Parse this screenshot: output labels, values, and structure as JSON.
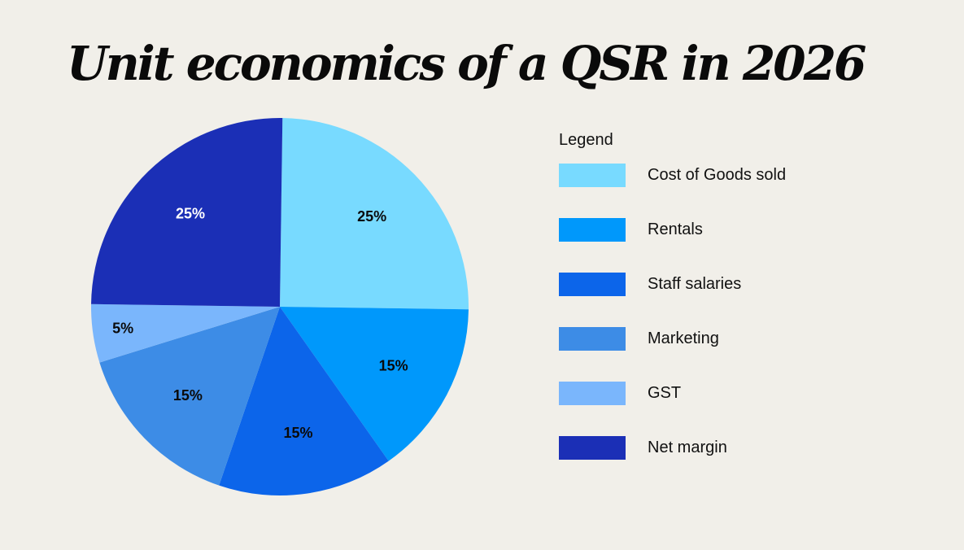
{
  "chart_data": {
    "type": "pie",
    "title": "Unit economics of a QSR in 2026",
    "legend_title": "Legend",
    "legend_position": "right",
    "slices": [
      {
        "label": "Cost of Goods sold",
        "value": 25,
        "display": "25%",
        "color": "#78daff",
        "text_color": "#0a0a0a"
      },
      {
        "label": "Rentals",
        "value": 15,
        "display": "15%",
        "color": "#0098fb",
        "text_color": "#0a0a0a"
      },
      {
        "label": "Staff salaries",
        "value": 15,
        "display": "15%",
        "color": "#0c65ea",
        "text_color": "#0a0a0a"
      },
      {
        "label": "Marketing",
        "value": 15,
        "display": "15%",
        "color": "#3d8ce6",
        "text_color": "#0a0a0a"
      },
      {
        "label": "GST",
        "value": 5,
        "display": "5%",
        "color": "#7ab6fc",
        "text_color": "#0a0a0a"
      },
      {
        "label": "Net margin",
        "value": 25,
        "display": "25%",
        "color": "#1b2fb6",
        "text_color": "#ffffff"
      }
    ]
  }
}
